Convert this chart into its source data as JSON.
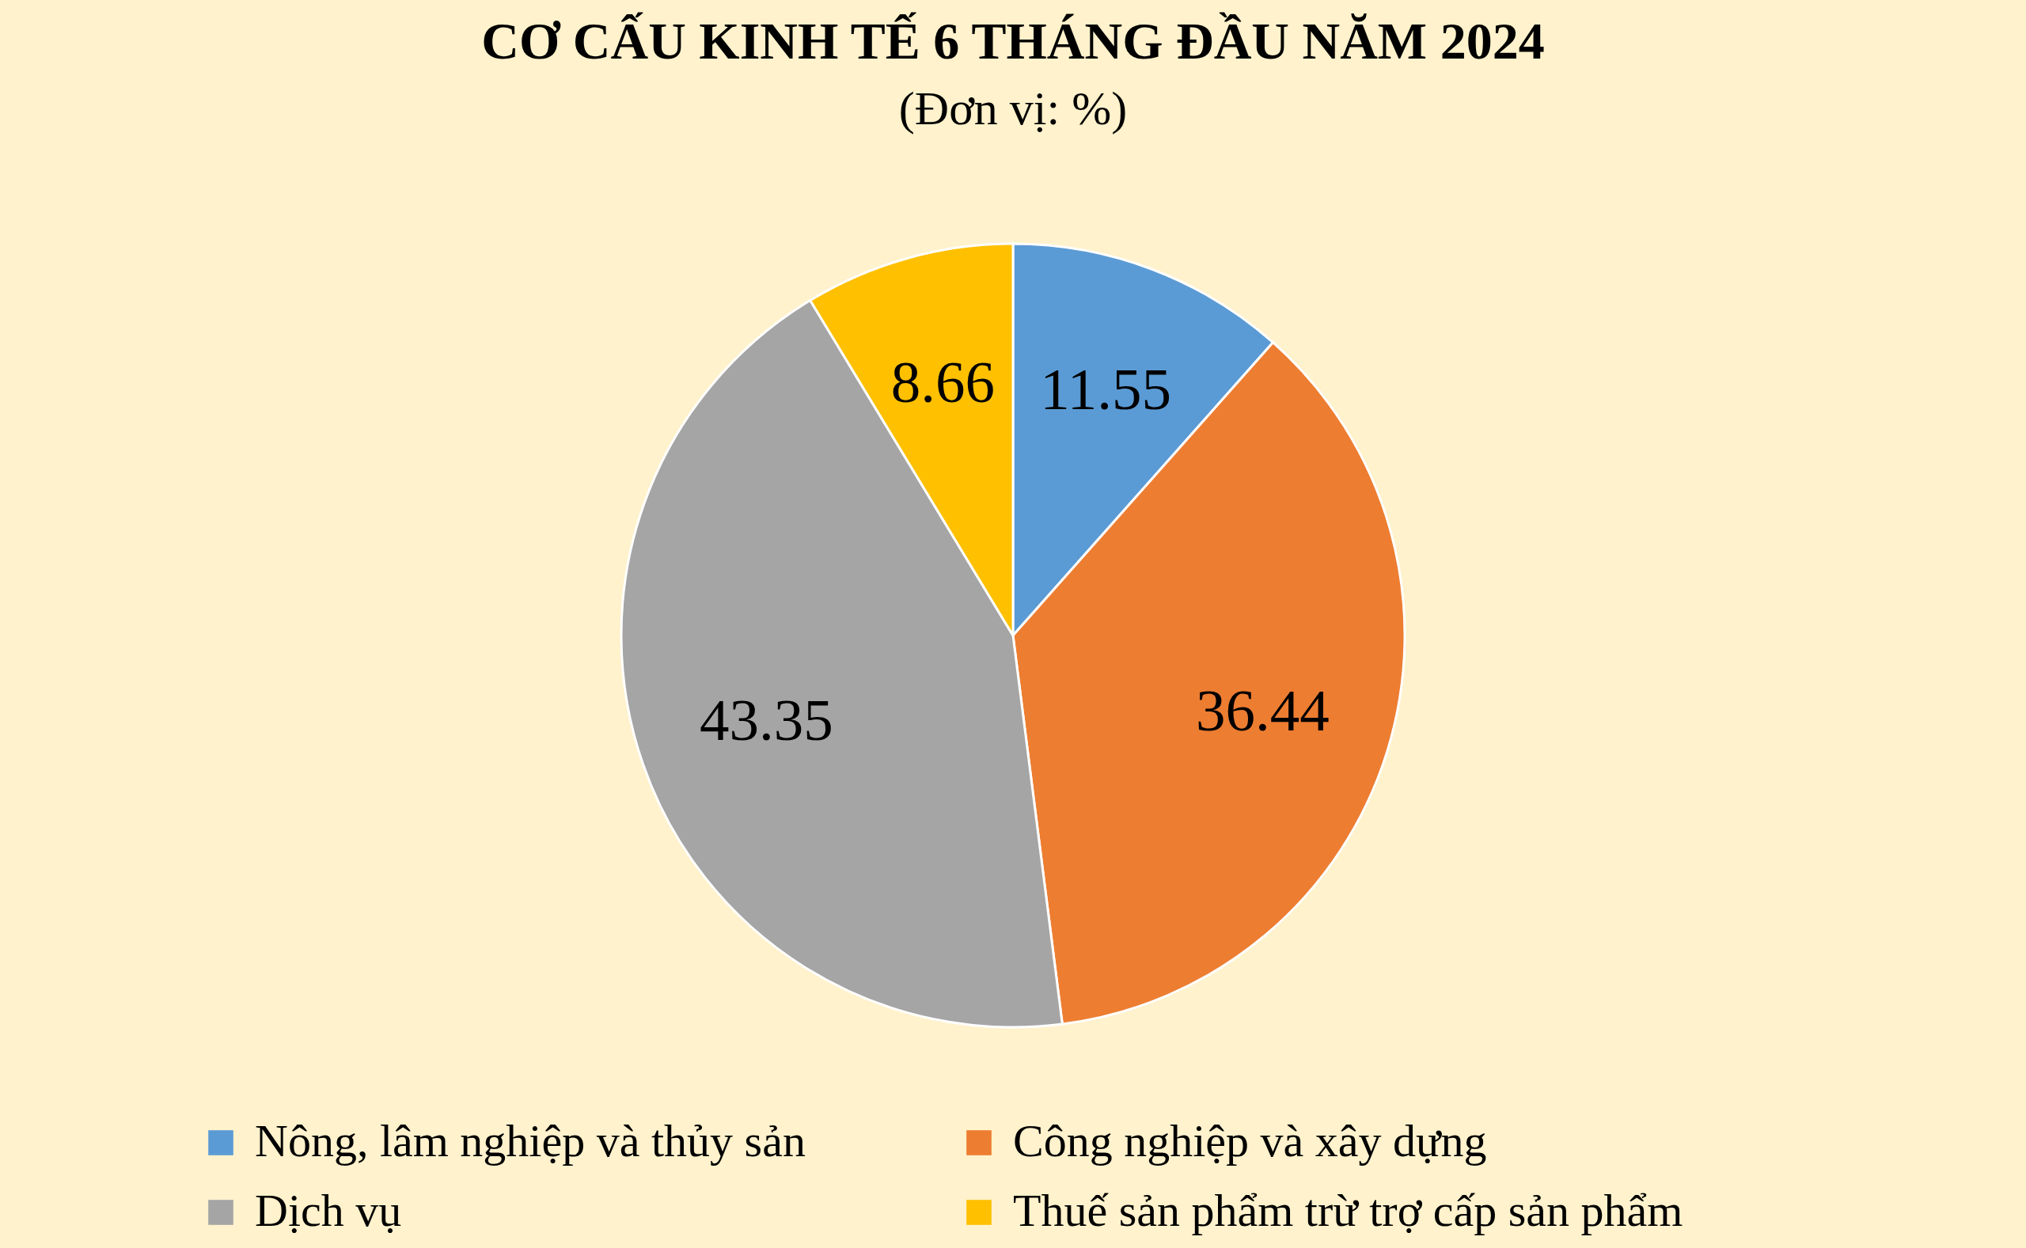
{
  "chart_data": {
    "type": "pie",
    "title": "CƠ CẤU KINH TẾ 6 THÁNG ĐẦU NĂM 2024",
    "subtitle": "(Đơn vị: %)",
    "categories": [
      "Nông, lâm nghiệp và thủy sản",
      "Công nghiệp và xây dựng",
      "Dịch vụ",
      "Thuế sản phẩm trừ trợ cấp sản phẩm"
    ],
    "values": [
      11.55,
      36.44,
      43.35,
      8.66
    ],
    "colors": [
      "#5b9bd5",
      "#ed7d31",
      "#a5a5a5",
      "#ffc000"
    ],
    "data_labels": true,
    "legend": "bottom"
  }
}
